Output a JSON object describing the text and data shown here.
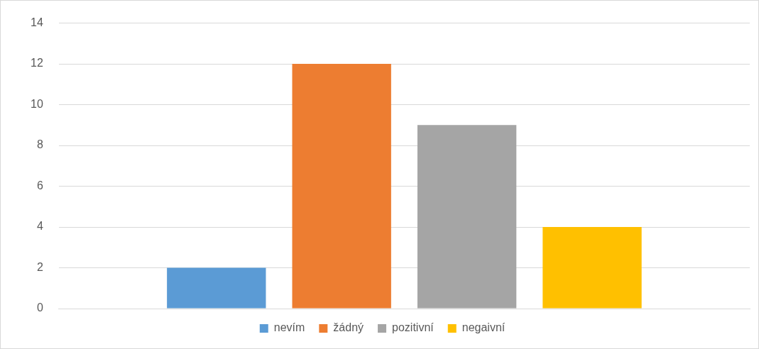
{
  "chart_data": {
    "type": "bar",
    "categories": [
      null
    ],
    "series": [
      {
        "name": "nevím",
        "color": "#5b9bd5",
        "values": [
          2
        ]
      },
      {
        "name": "žádný",
        "color": "#ed7d31",
        "values": [
          12
        ]
      },
      {
        "name": "pozitivní",
        "color": "#a5a5a5",
        "values": [
          9
        ]
      },
      {
        "name": "negaivní",
        "color": "#ffc000",
        "values": [
          4
        ]
      }
    ],
    "ylim": [
      0,
      14
    ],
    "yticks": [
      0,
      2,
      4,
      6,
      8,
      10,
      12,
      14
    ],
    "grid": "y",
    "legend": "bottom"
  }
}
